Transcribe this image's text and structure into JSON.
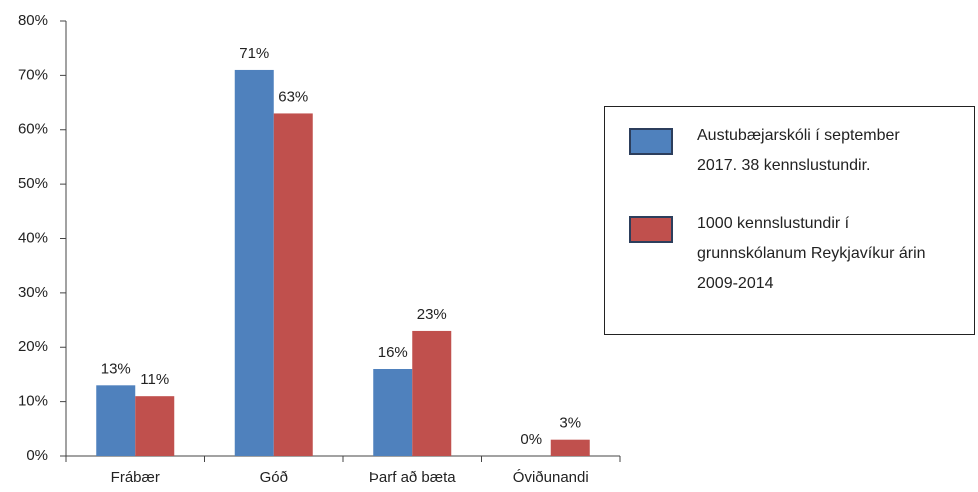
{
  "chart_data": {
    "type": "bar",
    "categories": [
      "Frábær",
      "Góð",
      "Þarf að bæta",
      "Óviðunandi"
    ],
    "series": [
      {
        "name": "Austubæjarskóli í september 2017. 38 kennslustundir.",
        "color": "#4f81bd",
        "values": [
          13,
          71,
          16,
          0
        ],
        "value_labels": [
          "13%",
          "71%",
          "16%",
          "0%"
        ]
      },
      {
        "name": "1000 kennslustundir í grunnskólanum Reykjavíkur árin 2009-2014",
        "color": "#c0504d",
        "values": [
          11,
          63,
          23,
          3
        ],
        "value_labels": [
          "11%",
          "63%",
          "23%",
          "3%"
        ]
      }
    ],
    "ylim": [
      0,
      80
    ],
    "yticks": [
      {
        "value": 0,
        "label": "0%"
      },
      {
        "value": 10,
        "label": "10%"
      },
      {
        "value": 20,
        "label": "20%"
      },
      {
        "value": 30,
        "label": "30%"
      },
      {
        "value": 40,
        "label": "40%"
      },
      {
        "value": 50,
        "label": "50%"
      },
      {
        "value": 60,
        "label": "60%"
      },
      {
        "value": 70,
        "label": "70%"
      },
      {
        "value": 80,
        "label": "80%"
      }
    ],
    "grid": false,
    "legend": "right"
  }
}
